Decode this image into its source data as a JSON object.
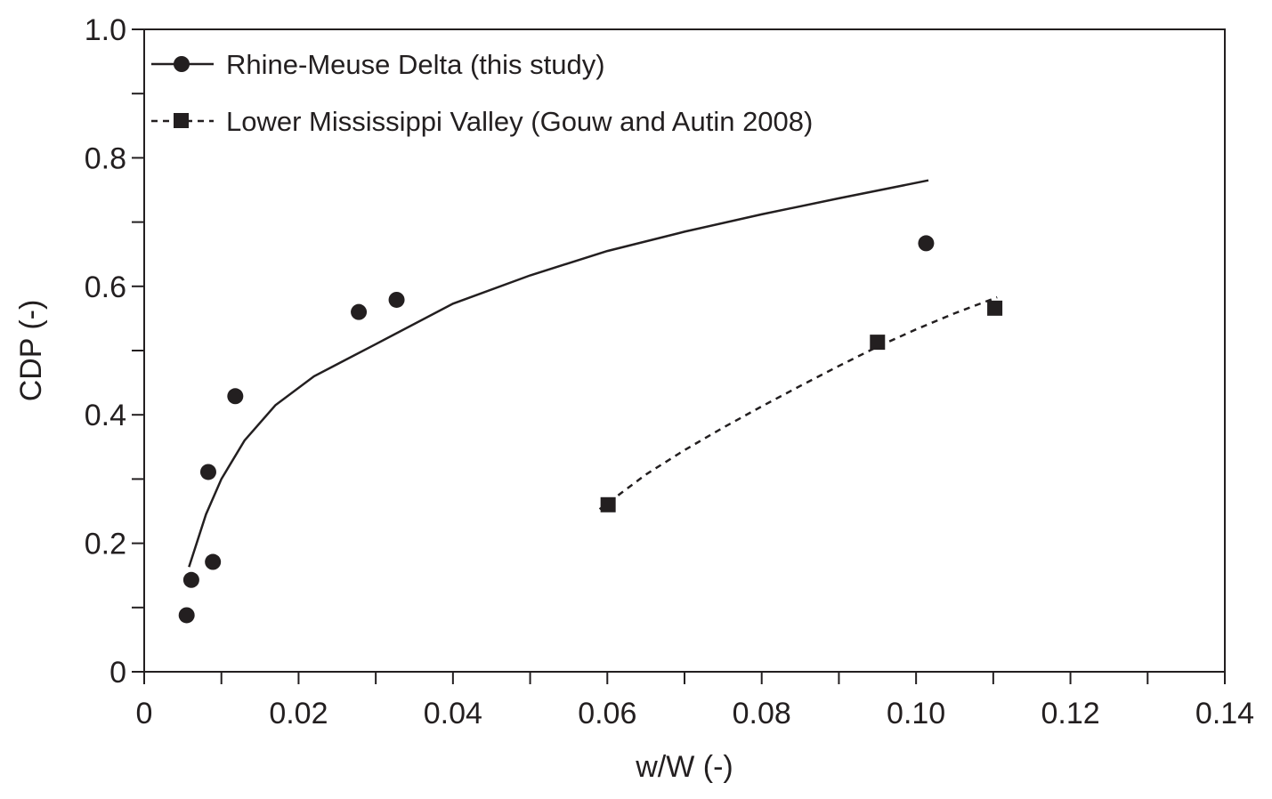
{
  "chart_data": {
    "type": "scatter",
    "xlabel": "w/W (-)",
    "ylabel": "CDP (-)",
    "xlim": [
      0,
      0.14
    ],
    "ylim": [
      0,
      1.0
    ],
    "x_ticks": [
      {
        "value": 0,
        "label": "0"
      },
      {
        "value": 0.02,
        "label": "0.02"
      },
      {
        "value": 0.04,
        "label": "0.04"
      },
      {
        "value": 0.06,
        "label": "0.06"
      },
      {
        "value": 0.08,
        "label": "0.08"
      },
      {
        "value": 0.1,
        "label": "0.10"
      },
      {
        "value": 0.12,
        "label": "0.12"
      },
      {
        "value": 0.14,
        "label": "0.14"
      }
    ],
    "x_minor_ticks": [
      0.01,
      0.03,
      0.05,
      0.07,
      0.09,
      0.11,
      0.13
    ],
    "y_ticks": [
      {
        "value": 0,
        "label": "0"
      },
      {
        "value": 0.2,
        "label": "0.2"
      },
      {
        "value": 0.4,
        "label": "0.4"
      },
      {
        "value": 0.6,
        "label": "0.6"
      },
      {
        "value": 0.8,
        "label": "0.8"
      },
      {
        "value": 1.0,
        "label": "1.0"
      }
    ],
    "y_minor_ticks": [
      0.1,
      0.3,
      0.5,
      0.7,
      0.9
    ],
    "grid": false,
    "legend_position": "top-left",
    "series": [
      {
        "name": "Rhine-Meuse Delta (this study)",
        "marker": "circle",
        "line_style": "solid",
        "color": "#231f20",
        "points": [
          {
            "x": 0.0055,
            "y": 0.088
          },
          {
            "x": 0.0061,
            "y": 0.143
          },
          {
            "x": 0.0083,
            "y": 0.311
          },
          {
            "x": 0.0089,
            "y": 0.171
          },
          {
            "x": 0.0118,
            "y": 0.429
          },
          {
            "x": 0.0278,
            "y": 0.56
          },
          {
            "x": 0.0327,
            "y": 0.579
          },
          {
            "x": 0.1013,
            "y": 0.667
          }
        ],
        "trend_line": [
          {
            "x": 0.0058,
            "y": 0.163
          },
          {
            "x": 0.008,
            "y": 0.245
          },
          {
            "x": 0.01,
            "y": 0.3
          },
          {
            "x": 0.013,
            "y": 0.36
          },
          {
            "x": 0.017,
            "y": 0.415
          },
          {
            "x": 0.022,
            "y": 0.46
          },
          {
            "x": 0.03,
            "y": 0.51
          },
          {
            "x": 0.04,
            "y": 0.573
          },
          {
            "x": 0.05,
            "y": 0.617
          },
          {
            "x": 0.06,
            "y": 0.655
          },
          {
            "x": 0.07,
            "y": 0.685
          },
          {
            "x": 0.08,
            "y": 0.712
          },
          {
            "x": 0.09,
            "y": 0.737
          },
          {
            "x": 0.1016,
            "y": 0.765
          }
        ]
      },
      {
        "name": "Lower Mississippi Valley (Gouw and Autin 2008)",
        "marker": "square",
        "line_style": "dashed",
        "color": "#231f20",
        "points": [
          {
            "x": 0.0601,
            "y": 0.26
          },
          {
            "x": 0.095,
            "y": 0.513
          },
          {
            "x": 0.1102,
            "y": 0.566
          }
        ],
        "trend_line": [
          {
            "x": 0.059,
            "y": 0.253
          },
          {
            "x": 0.065,
            "y": 0.307
          },
          {
            "x": 0.07,
            "y": 0.345
          },
          {
            "x": 0.075,
            "y": 0.38
          },
          {
            "x": 0.08,
            "y": 0.413
          },
          {
            "x": 0.085,
            "y": 0.445
          },
          {
            "x": 0.09,
            "y": 0.476
          },
          {
            "x": 0.095,
            "y": 0.506
          },
          {
            "x": 0.1,
            "y": 0.533
          },
          {
            "x": 0.105,
            "y": 0.558
          },
          {
            "x": 0.1105,
            "y": 0.583
          }
        ]
      }
    ]
  }
}
